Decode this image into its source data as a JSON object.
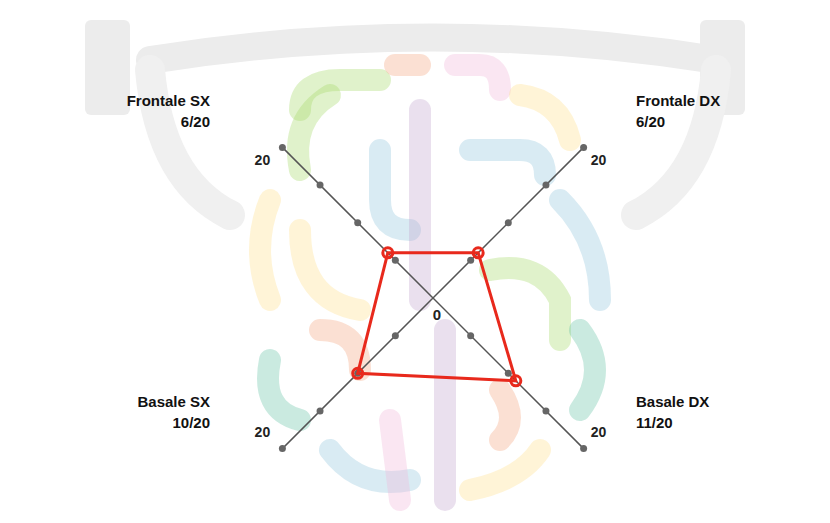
{
  "chart_data": {
    "type": "radar",
    "categories": [
      "Frontale DX",
      "Basale DX",
      "Basale SX",
      "Frontale SX"
    ],
    "values": [
      6,
      11,
      10,
      6
    ],
    "value_labels": [
      "6/20",
      "11/20",
      "10/20",
      "6/20"
    ],
    "color": "#e8291c",
    "ylim": [
      0,
      20
    ],
    "yticks": [
      0,
      20
    ],
    "marker": "circle"
  }
}
